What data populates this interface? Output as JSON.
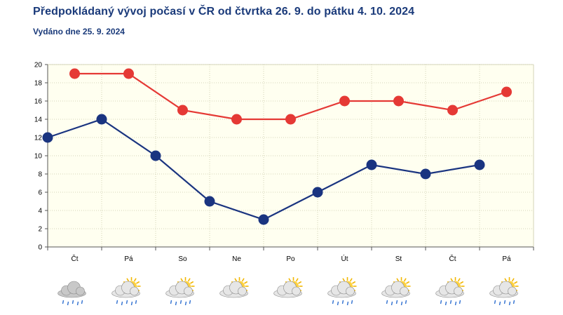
{
  "header": {
    "title": "Předpokládaný vývoj počasí v ČR od čtvrtka 26. 9. do pátku 4. 10. 2024",
    "subtitle": "Vydáno dne 25. 9. 2024"
  },
  "chart_data": {
    "type": "line",
    "categories": [
      "Čt",
      "Pá",
      "So",
      "Ne",
      "Po",
      "Út",
      "St",
      "Čt",
      "Pá"
    ],
    "series": [
      {
        "color": "#e53935",
        "values": [
          19,
          19,
          15,
          14,
          14,
          16,
          16,
          15,
          17
        ]
      },
      {
        "color": "#1a3480",
        "values": [
          12,
          14,
          10,
          5,
          3,
          6,
          9,
          8,
          9
        ]
      }
    ],
    "ylim": [
      0,
      20
    ],
    "yticks": [
      0,
      2,
      4,
      6,
      8,
      10,
      12,
      14,
      16,
      18,
      20
    ],
    "grid": true,
    "plot_background": "#fffff0",
    "weather_icons": [
      "cloud-rain-icon",
      "sun-cloud-rain-icon",
      "sun-cloud-rain-icon",
      "sun-cloud-icon",
      "sun-cloud-icon",
      "sun-cloud-rain-icon",
      "sun-cloud-rain-icon",
      "sun-cloud-rain-icon",
      "sun-cloud-rain-icon"
    ]
  }
}
